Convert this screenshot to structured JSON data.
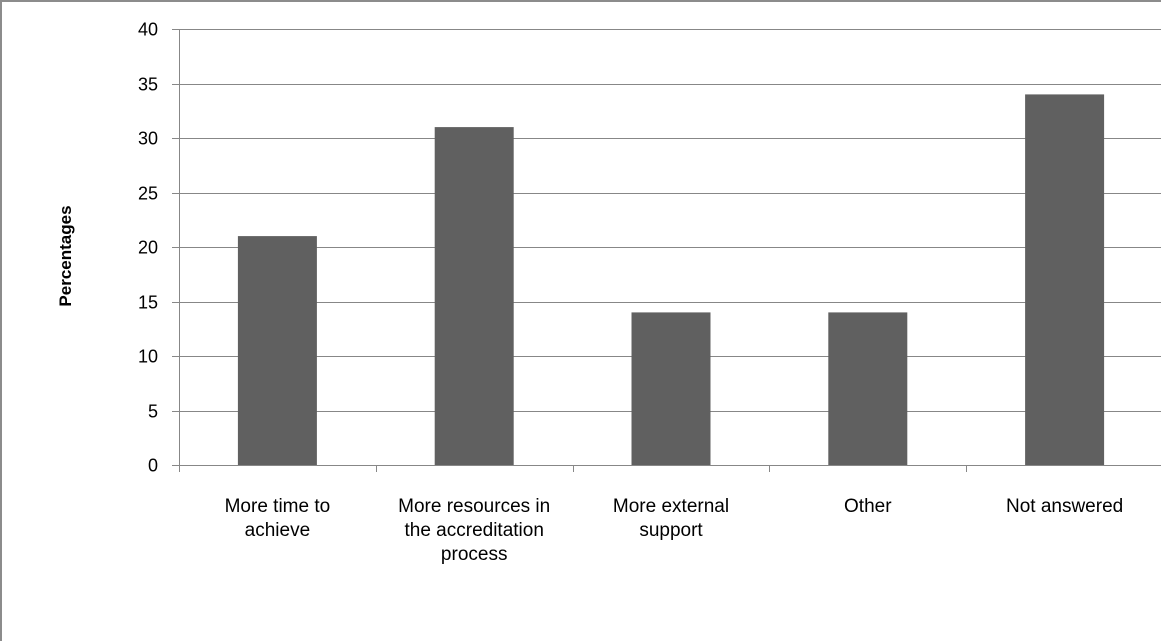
{
  "chart_data": {
    "type": "bar",
    "title": "",
    "xlabel": "",
    "ylabel": "Percentages",
    "categories": [
      [
        "More time to",
        "achieve"
      ],
      [
        "More resources in",
        "the accreditation",
        "process"
      ],
      [
        "More external",
        "support"
      ],
      [
        "Other"
      ],
      [
        "Not answered"
      ]
    ],
    "values": [
      21,
      31,
      14,
      14,
      34
    ],
    "ylim": [
      0,
      40
    ],
    "yticks": [
      0,
      5,
      10,
      15,
      20,
      25,
      30,
      35,
      40
    ],
    "grid": true,
    "legend": "none",
    "bar_color": "#606060",
    "grid_color": "#878787"
  }
}
